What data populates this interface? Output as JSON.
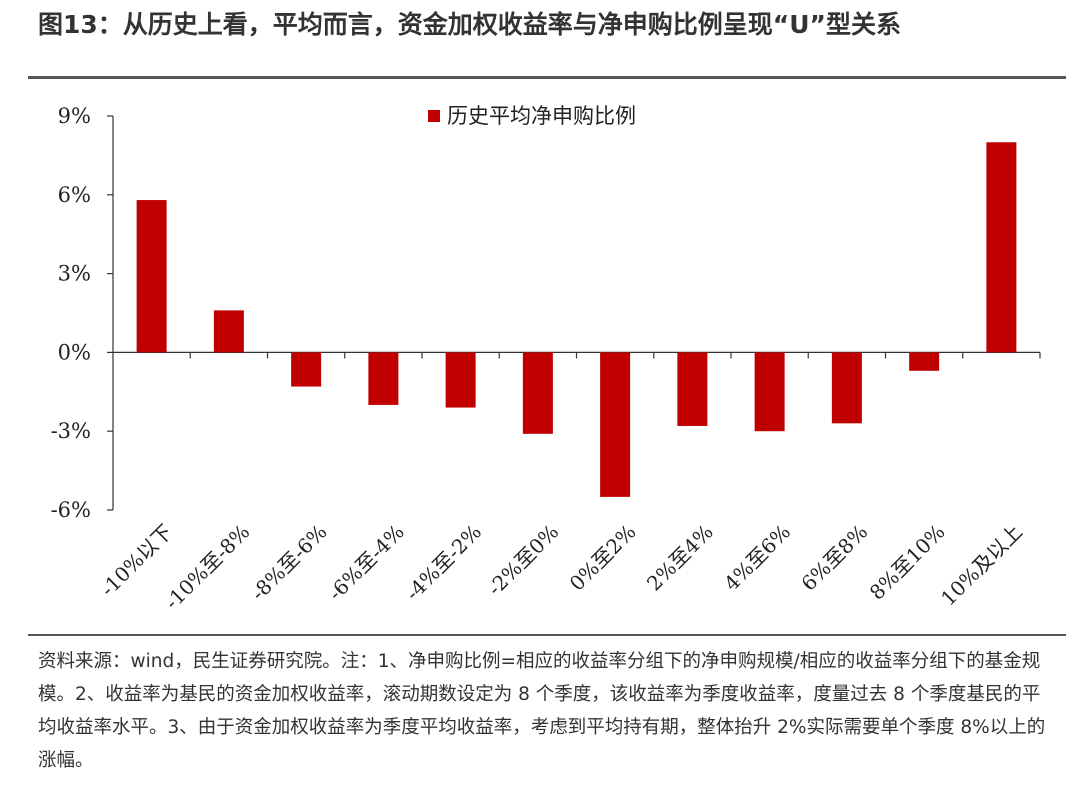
{
  "header": {
    "title": "图13：从历史上看，平均而言，资金加权收益率与净申购比例呈现“U”型关系"
  },
  "footer": {
    "note": "资料来源：wind，民生证券研究院。注：1、净申购比例=相应的收益率分组下的净申购规模/相应的收益率分组下的基金规模。2、收益率为基民的资金加权收益率，滚动期数设定为 8 个季度，该收益率为季度收益率，度量过去 8 个季度基民的平均收益率水平。3、由于资金加权收益率为季度平均收益率，考虑到平均持有期，整体抬升 2%实际需要单个季度 8%以上的涨幅。"
  },
  "chart_data": {
    "type": "bar",
    "categories": [
      "-10%以下",
      "-10%至-8%",
      "-8%至-6%",
      "-6%至-4%",
      "-4%至-2%",
      "-2%至0%",
      "0%至2%",
      "2%至4%",
      "4%至6%",
      "6%至8%",
      "8%至10%",
      "10%及以上"
    ],
    "series": [
      {
        "name": "历史平均净申购比例",
        "values": [
          5.8,
          1.6,
          -1.3,
          -2.0,
          -2.1,
          -3.1,
          -5.5,
          -2.8,
          -3.0,
          -2.7,
          -0.7,
          8.0
        ]
      }
    ],
    "ylim": [
      -6,
      9
    ],
    "yticks": [
      9,
      6,
      3,
      0,
      -3,
      -6
    ],
    "ytick_labels": [
      "9%",
      "6%",
      "3%",
      "0%",
      "-3%",
      "-6%"
    ],
    "legend_position": "top-center",
    "colors": {
      "bar": "#C00000",
      "axis": "#333333"
    }
  }
}
